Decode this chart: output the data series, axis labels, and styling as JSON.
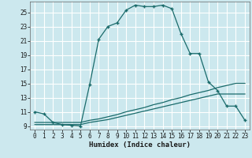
{
  "xlabel": "Humidex (Indice chaleur)",
  "bg_color": "#cce8ee",
  "grid_color": "#ffffff",
  "line_color": "#1a6b6b",
  "xlim": [
    -0.5,
    23.5
  ],
  "ylim": [
    8.5,
    26.5
  ],
  "xticks": [
    0,
    1,
    2,
    3,
    4,
    5,
    6,
    7,
    8,
    9,
    10,
    11,
    12,
    13,
    14,
    15,
    16,
    17,
    18,
    19,
    20,
    21,
    22,
    23
  ],
  "yticks": [
    9,
    11,
    13,
    15,
    17,
    19,
    21,
    23,
    25
  ],
  "curve1_x": [
    0,
    1,
    2,
    3,
    4,
    5,
    6,
    7,
    8,
    9,
    10,
    11,
    12,
    13,
    14,
    15,
    16,
    17,
    18,
    19,
    20,
    21,
    22,
    23
  ],
  "curve1_y": [
    11.0,
    10.7,
    9.5,
    9.2,
    9.1,
    9.0,
    14.8,
    21.2,
    23.0,
    23.5,
    25.3,
    26.0,
    25.8,
    25.8,
    26.0,
    25.5,
    22.0,
    19.2,
    19.2,
    15.2,
    14.0,
    11.8,
    11.8,
    9.8
  ],
  "curve2_x": [
    0,
    1,
    2,
    3,
    4,
    5,
    6,
    7,
    8,
    9,
    10,
    11,
    12,
    13,
    14,
    15,
    16,
    17,
    18,
    19,
    20,
    21,
    22,
    23
  ],
  "curve2_y": [
    9.5,
    9.5,
    9.5,
    9.5,
    9.5,
    9.5,
    9.8,
    10.0,
    10.3,
    10.6,
    11.0,
    11.3,
    11.6,
    12.0,
    12.3,
    12.7,
    13.0,
    13.4,
    13.7,
    14.0,
    14.4,
    14.7,
    15.0,
    15.0
  ],
  "curve3_x": [
    0,
    1,
    2,
    3,
    4,
    5,
    6,
    7,
    8,
    9,
    10,
    11,
    12,
    13,
    14,
    15,
    16,
    17,
    18,
    19,
    20,
    21,
    22,
    23
  ],
  "curve3_y": [
    9.2,
    9.2,
    9.2,
    9.2,
    9.2,
    9.2,
    9.5,
    9.7,
    9.9,
    10.2,
    10.5,
    10.8,
    11.1,
    11.4,
    11.7,
    12.0,
    12.3,
    12.6,
    12.9,
    13.2,
    13.5,
    13.5,
    13.5,
    13.5
  ]
}
